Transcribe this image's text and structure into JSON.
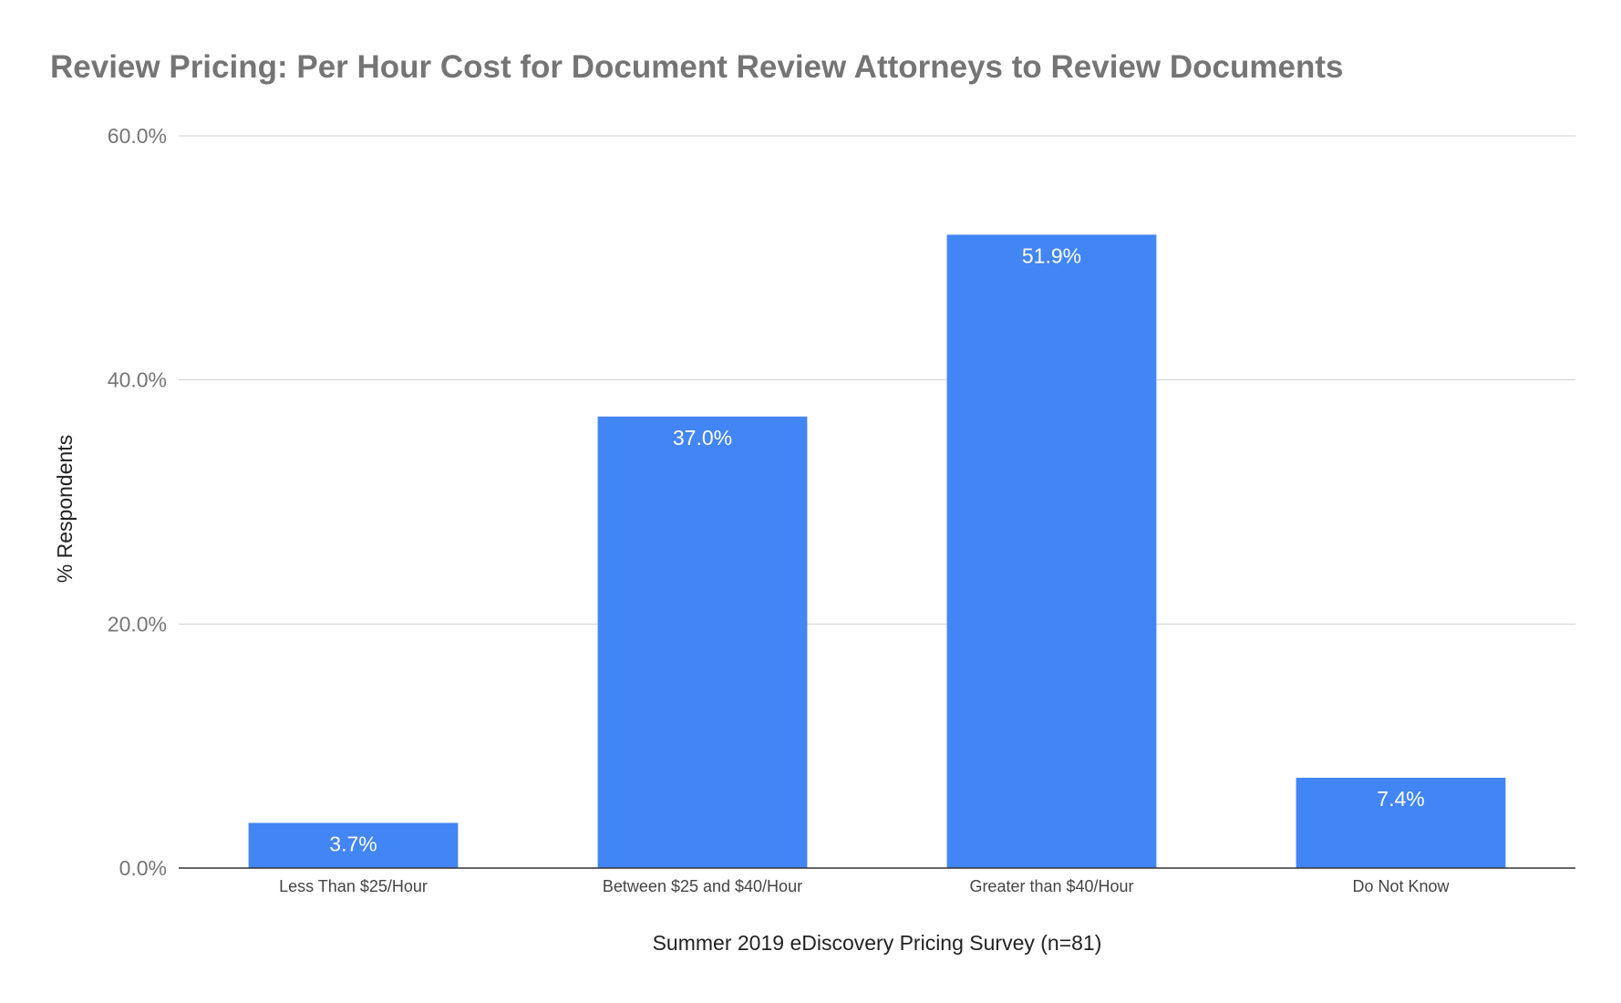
{
  "chart_data": {
    "type": "bar",
    "title": "Review Pricing: Per Hour Cost for Document Review Attorneys to Review Documents",
    "xlabel": "Summer 2019 eDiscovery Pricing Survey (n=81)",
    "ylabel": "% Respondents",
    "categories": [
      "Less Than $25/Hour",
      "Between $25 and $40/Hour",
      "Greater than $40/Hour",
      "Do Not Know"
    ],
    "values": [
      3.7,
      37.0,
      51.9,
      7.4
    ],
    "data_labels": [
      "3.7%",
      "37.0%",
      "51.9%",
      "7.4%"
    ],
    "yticks": [
      0,
      20,
      40,
      60
    ],
    "ytick_labels": [
      "0.0%",
      "20.0%",
      "40.0%",
      "60.0%"
    ],
    "ylim": [
      0,
      60
    ],
    "grid": true,
    "legend": "none",
    "bar_color": "#4285f4"
  }
}
